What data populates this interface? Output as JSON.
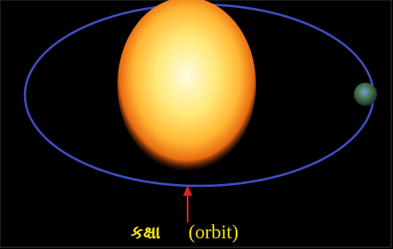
{
  "label": {
    "gujarati": "કક્ષા",
    "english": "(orbit)"
  }
}
